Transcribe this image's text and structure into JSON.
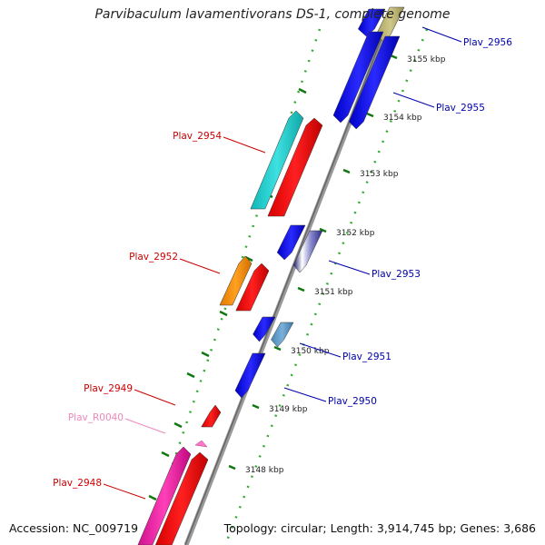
{
  "title": "Parvibaculum lavamentivorans DS-1, complete genome",
  "accession": "Accession: NC_009719",
  "summary": "Topology: circular; Length: 3,914,745 bp; Genes: 3,686",
  "colors": {
    "forward_label": "#0000aa",
    "reverse_label": "#cc0000",
    "rna_label": "#ee88bb",
    "tick": "#117711",
    "backbone": "#888888"
  },
  "ticks": [
    "3155 kbp",
    "3154 kbp",
    "3153 kbp",
    "3152 kbp",
    "3151 kbp",
    "3150 kbp",
    "3149 kbp",
    "3148 kbp"
  ],
  "genes": [
    {
      "name": "Plav_2956",
      "strand": "forward"
    },
    {
      "name": "Plav_2955",
      "strand": "forward"
    },
    {
      "name": "Plav_2954",
      "strand": "reverse"
    },
    {
      "name": "Plav_2953",
      "strand": "forward"
    },
    {
      "name": "Plav_2952",
      "strand": "reverse"
    },
    {
      "name": "Plav_2951",
      "strand": "forward"
    },
    {
      "name": "Plav_2950",
      "strand": "forward"
    },
    {
      "name": "Plav_2949",
      "strand": "reverse"
    },
    {
      "name": "Plav_R0040",
      "strand": "rna"
    },
    {
      "name": "Plav_2948",
      "strand": "reverse"
    }
  ]
}
